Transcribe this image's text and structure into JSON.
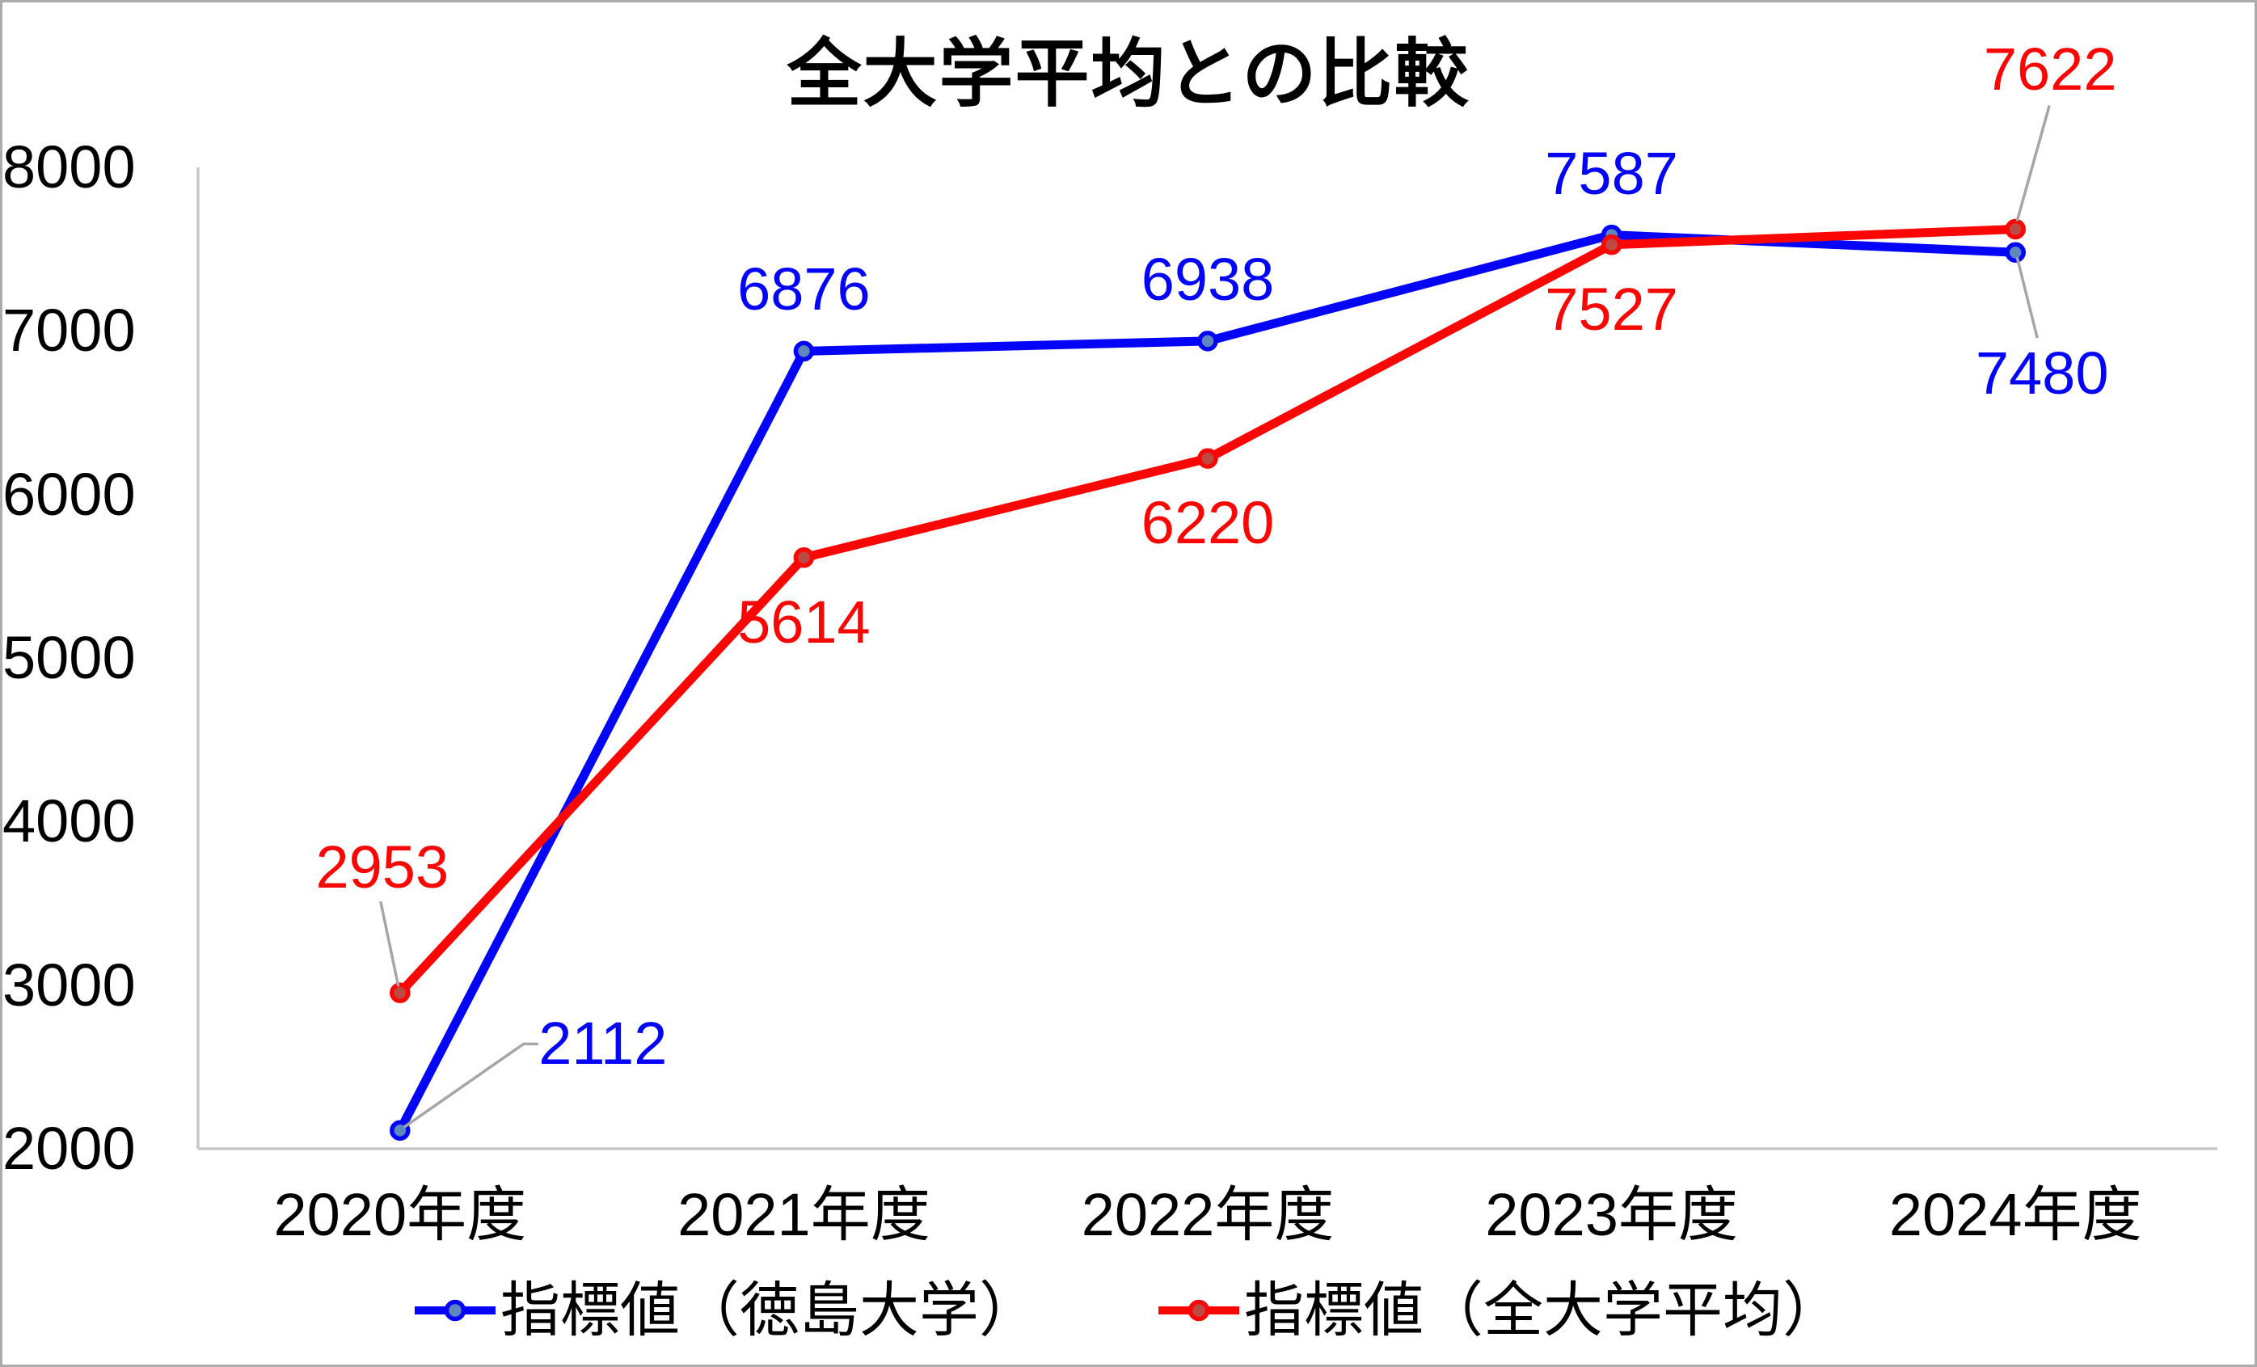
{
  "chart_data": {
    "type": "line",
    "title": "全大学平均との比較",
    "categories": [
      "2020年度",
      "2021年度",
      "2022年度",
      "2023年度",
      "2024年度"
    ],
    "series": [
      {
        "name": "指標値（徳島大学）",
        "color": "#0404f8",
        "marker_fill": "#5e87bc",
        "values": [
          2112,
          6876,
          6938,
          7587,
          7480
        ],
        "data_label_placements": [
          "callout-right-up",
          "above",
          "above",
          "above",
          "callout-below-right"
        ]
      },
      {
        "name": "指標値（全大学平均）",
        "color": "#fa0605",
        "marker_fill": "#ba4a42",
        "values": [
          2953,
          5614,
          6220,
          7527,
          7622
        ],
        "data_label_placements": [
          "callout-above-left",
          "below",
          "below",
          "below",
          "callout-above-right"
        ]
      }
    ],
    "y_axis": {
      "min": 2000,
      "max": 8000,
      "step": 1000,
      "tick_labels": [
        "8000",
        "7000",
        "6000",
        "5000",
        "4000",
        "3000",
        "2000"
      ]
    },
    "x_axis": {
      "tick_labels": [
        "2020年度",
        "2021年度",
        "2022年度",
        "2023年度",
        "2024年度"
      ]
    },
    "legend": {
      "position": "bottom",
      "entries": [
        "指標値（徳島大学）",
        "指標値（全大学平均）"
      ]
    },
    "grid": false,
    "colors": {
      "axis_line": "#c9c9c9",
      "leader_line": "#a6a6a6",
      "frame_border": "#ababab",
      "background": "#ffffff",
      "text": "#000000"
    }
  }
}
